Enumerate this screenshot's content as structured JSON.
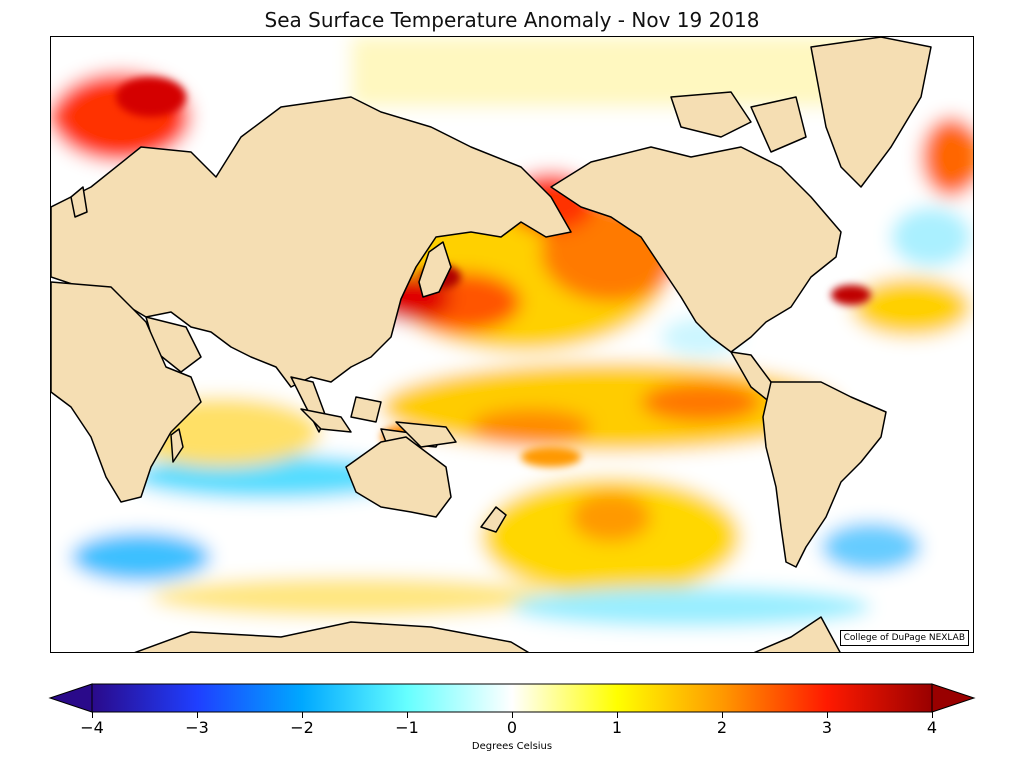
{
  "title": "Sea Surface Temperature Anomaly - Nov 19 2018",
  "credit": "College of DuPage NEXLAB",
  "map": {
    "projection": "cylindrical, Pacific-centered",
    "land_color": "#f5deb3",
    "coastline_color": "#000000",
    "border_color": "#888888"
  },
  "colorbar": {
    "label": "Degrees Celsius",
    "min": -4,
    "max": 4,
    "extend": "both",
    "ticks": [
      {
        "value": -4,
        "label": "−4"
      },
      {
        "value": -3,
        "label": "−3"
      },
      {
        "value": -2,
        "label": "−2"
      },
      {
        "value": -1,
        "label": "−1"
      },
      {
        "value": 0,
        "label": "0"
      },
      {
        "value": 1,
        "label": "1"
      },
      {
        "value": 2,
        "label": "2"
      },
      {
        "value": 3,
        "label": "3"
      },
      {
        "value": 4,
        "label": "4"
      }
    ],
    "color_stops": [
      {
        "value": -4,
        "color": "#2a0a8a"
      },
      {
        "value": -3,
        "color": "#1f3fff"
      },
      {
        "value": -2,
        "color": "#00a8ff"
      },
      {
        "value": -1,
        "color": "#66ffff"
      },
      {
        "value": 0,
        "color": "#ffffff"
      },
      {
        "value": 1,
        "color": "#ffff00"
      },
      {
        "value": 2,
        "color": "#ff9900"
      },
      {
        "value": 3,
        "color": "#ff1a00"
      },
      {
        "value": 4,
        "color": "#990000"
      }
    ]
  }
}
